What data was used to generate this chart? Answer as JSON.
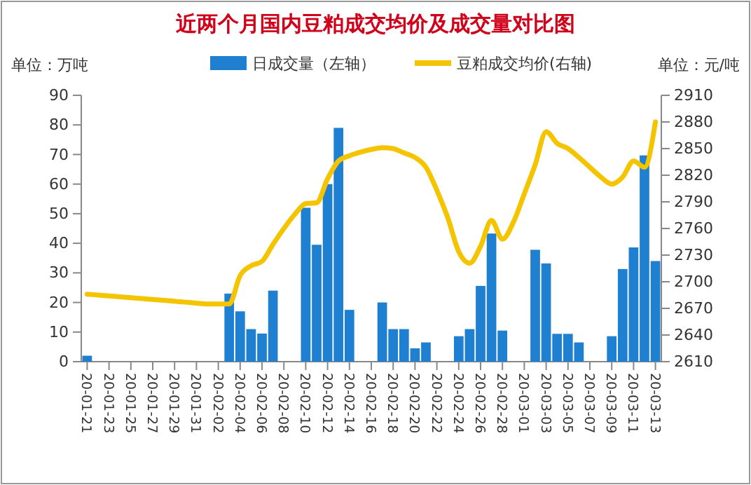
{
  "chart_data": {
    "type": "bar",
    "title": "近两个月国内豆粕成交均价及成交量对比图",
    "categories": [
      "20-01-21",
      null,
      "20-01-23",
      null,
      "20-01-25",
      null,
      "20-01-27",
      null,
      "20-01-29",
      null,
      "20-01-31",
      null,
      "20-02-02",
      null,
      "20-02-04",
      null,
      "20-02-06",
      null,
      "20-02-08",
      null,
      "20-02-10",
      null,
      "20-02-12",
      null,
      "20-02-14",
      null,
      "20-02-16",
      null,
      "20-02-18",
      null,
      "20-02-20",
      null,
      "20-02-22",
      null,
      "20-02-24",
      null,
      "20-02-26",
      null,
      "20-02-28",
      null,
      "20-03-01",
      null,
      "20-03-03",
      null,
      "20-03-05",
      null,
      "20-03-07",
      null,
      "20-03-09",
      null,
      "20-03-11",
      null,
      "20-03-13"
    ],
    "series": [
      {
        "name": "日成交量（左轴）",
        "color": "#1f7fd0",
        "values": [
          2,
          null,
          null,
          null,
          null,
          null,
          null,
          null,
          null,
          null,
          null,
          null,
          null,
          23,
          17,
          11,
          9.5,
          24,
          null,
          null,
          52,
          39.5,
          60,
          79,
          17.5,
          null,
          null,
          20,
          11,
          11,
          4.5,
          6.5,
          null,
          null,
          8.6,
          11,
          25.6,
          43.3,
          10.5,
          null,
          null,
          37.8,
          33.2,
          9.4,
          9.4,
          6.5,
          null,
          null,
          8.6,
          31.3,
          38.6,
          69.7,
          34
        ]
      },
      {
        "name": "豆粕成交均价(右轴)",
        "type": "line",
        "axis": "y2",
        "color": "#f5c400",
        "values": [
          2686,
          2685,
          2684,
          2683,
          2682,
          2681,
          2680,
          2679,
          2678,
          2677,
          2676,
          2675,
          2675,
          2675,
          2707,
          2718,
          2723,
          2742,
          2760,
          2776,
          2788,
          2789,
          2816,
          2836,
          2842,
          2846,
          2849,
          2851,
          2850,
          2845,
          2840,
          2829,
          2803,
          2772,
          2734,
          2721,
          2740,
          2769,
          2748,
          2767,
          2799,
          2832,
          2869,
          2856,
          2850,
          2840,
          2829,
          2818,
          2810,
          2818,
          2836,
          2829,
          2880
        ]
      }
    ],
    "ylim": [
      0,
      90
    ],
    "yticks": [
      0,
      10,
      20,
      30,
      40,
      50,
      60,
      70,
      80,
      90
    ],
    "y2lim": [
      2610,
      2910
    ],
    "y2ticks": [
      2610,
      2640,
      2670,
      2700,
      2730,
      2760,
      2790,
      2820,
      2850,
      2880,
      2910
    ],
    "annotations": [
      "单位：万吨",
      "单位：元/吨"
    ],
    "legend": "top",
    "grid": false,
    "marker": "none",
    "line_style": "solid"
  }
}
